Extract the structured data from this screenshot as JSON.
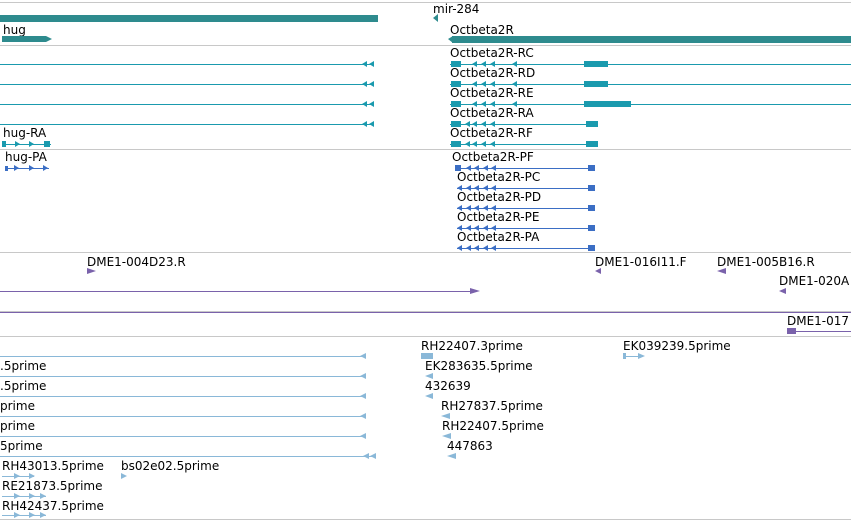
{
  "colors": {
    "gene": "#2e8b8e",
    "transcript_gene": "#1a9aae",
    "protein": "#3b6ec4",
    "clone_dark": "#7a62ab",
    "est": "#8ab8d8",
    "separator": "#c8c8c8"
  },
  "tracks": {
    "genes": {
      "labels": {
        "mir284": "mir-284",
        "hug": "hug",
        "octbeta2r": "Octbeta2R"
      }
    },
    "transcripts": {
      "labels": [
        "Octbeta2R-RC",
        "Octbeta2R-RD",
        "Octbeta2R-RE",
        "Octbeta2R-RA",
        "Octbeta2R-RF",
        "hug-RA"
      ]
    },
    "proteins": {
      "labels": [
        "Octbeta2R-PF",
        "Octbeta2R-PC",
        "Octbeta2R-PD",
        "Octbeta2R-PE",
        "Octbeta2R-PA",
        "hug-PA"
      ]
    },
    "clones": {
      "labels": [
        "DME1-004D23.R",
        "DME1-016I11.F",
        "DME1-005B16.R",
        "DME1-020A",
        "DME1-017"
      ]
    },
    "ests": {
      "labels": [
        "RH22407.3prime",
        "EK039239.5prime",
        ".5prime",
        "EK283635.5prime",
        ".5prime",
        "432639",
        "prime",
        "RH27837.5prime",
        "prime",
        "RH22407.5prime",
        "5prime",
        "447863",
        "RH43013.5prime",
        "bs02e02.5prime",
        "RE21873.5prime",
        "RH42437.5prime"
      ]
    }
  }
}
